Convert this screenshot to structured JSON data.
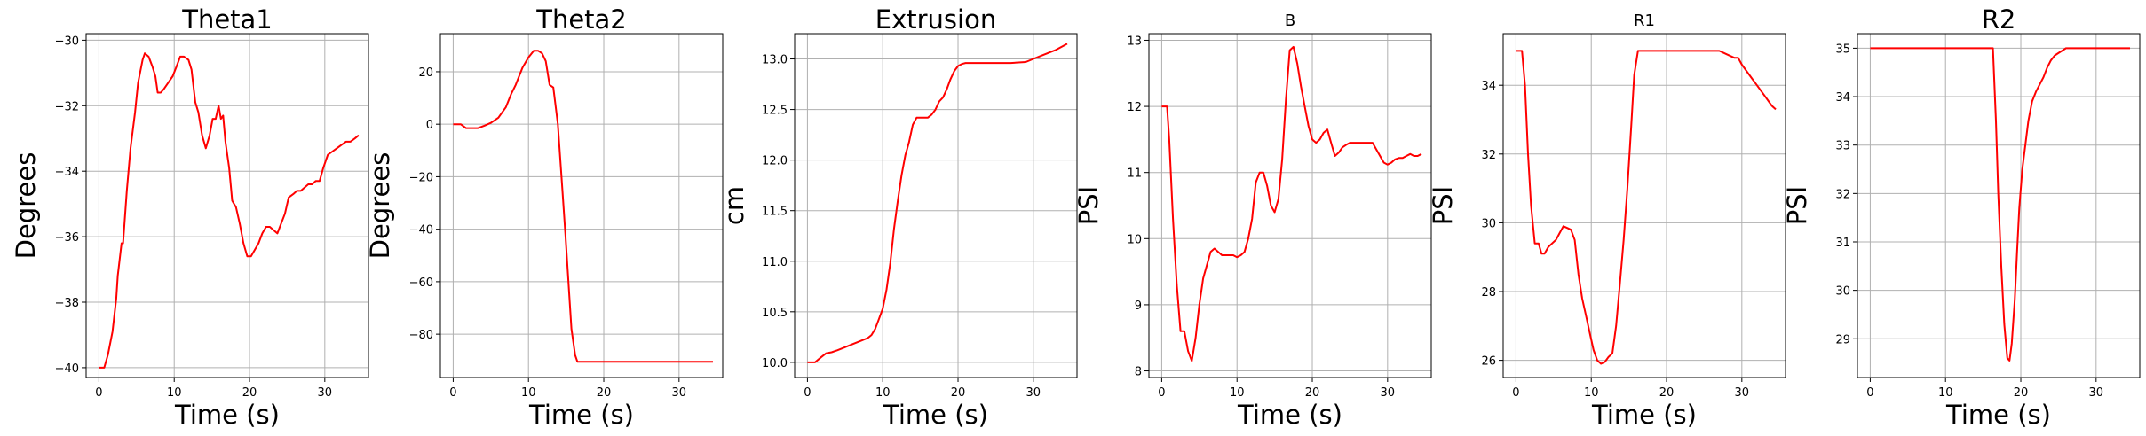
{
  "figure": {
    "line_color": "#ff0000",
    "grid_color": "#b0b0b0"
  },
  "chart_data": [
    {
      "type": "line",
      "title": "Theta1",
      "xlabel": "Time (s)",
      "ylabel": "Degrees",
      "xlim": [
        -1.7,
        35.8
      ],
      "ylim": [
        -40.3,
        -29.8
      ],
      "xticks": [
        0,
        10,
        20,
        30
      ],
      "yticks": [
        -40,
        -38,
        -36,
        -34,
        -32,
        -30
      ],
      "grid": true,
      "series": [
        {
          "x": [
            0,
            0.7,
            1.2,
            1.8,
            2.3,
            2.5,
            3.0,
            3.2,
            3.7,
            4.2,
            4.8,
            5.2,
            5.8,
            6.1,
            6.6,
            7.1,
            7.5,
            7.8,
            8.2,
            8.6,
            9.2,
            9.8,
            10.3,
            10.8,
            11.3,
            11.9,
            12.3,
            12.8,
            13.2,
            13.7,
            14.2,
            14.7,
            15.1,
            15.5,
            15.9,
            16.2,
            16.5,
            16.8,
            17.3,
            17.7,
            18.2,
            18.7,
            19.2,
            19.7,
            20.2,
            20.7,
            21.2,
            21.7,
            22.2,
            22.7,
            23.2,
            23.7,
            24.2,
            24.7,
            25.2,
            25.8,
            26.3,
            26.8,
            27.3,
            27.8,
            28.3,
            28.8,
            29.3,
            29.8,
            30.4,
            31.0,
            31.6,
            32.2,
            32.8,
            33.4,
            34.0,
            34.5
          ],
          "y": [
            -40.0,
            -40.0,
            -39.6,
            -38.9,
            -37.9,
            -37.2,
            -36.2,
            -36.2,
            -34.6,
            -33.3,
            -32.2,
            -31.3,
            -30.6,
            -30.4,
            -30.5,
            -30.8,
            -31.1,
            -31.6,
            -31.6,
            -31.5,
            -31.3,
            -31.1,
            -30.8,
            -30.5,
            -30.5,
            -30.6,
            -30.9,
            -31.9,
            -32.2,
            -32.9,
            -33.3,
            -32.9,
            -32.4,
            -32.4,
            -32.0,
            -32.4,
            -32.3,
            -33.1,
            -33.9,
            -34.9,
            -35.1,
            -35.6,
            -36.2,
            -36.6,
            -36.6,
            -36.4,
            -36.2,
            -35.9,
            -35.7,
            -35.7,
            -35.8,
            -35.9,
            -35.6,
            -35.3,
            -34.8,
            -34.7,
            -34.6,
            -34.6,
            -34.5,
            -34.4,
            -34.4,
            -34.3,
            -34.3,
            -33.9,
            -33.5,
            -33.4,
            -33.3,
            -33.2,
            -33.1,
            -33.1,
            -33.0,
            -32.9
          ]
        }
      ]
    },
    {
      "type": "line",
      "title": "Theta2",
      "xlabel": "Time (s)",
      "ylabel": "Degrees",
      "xlim": [
        -1.7,
        35.8
      ],
      "ylim": [
        -96.5,
        34.5
      ],
      "xticks": [
        0,
        10,
        20,
        30
      ],
      "yticks": [
        -80,
        -60,
        -40,
        -20,
        0,
        20
      ],
      "grid": true,
      "series": [
        {
          "x": [
            0,
            1.0,
            1.7,
            2.5,
            3.3,
            4.2,
            5.0,
            6.0,
            7.0,
            7.7,
            8.3,
            9.2,
            10.0,
            10.7,
            11.3,
            11.8,
            12.3,
            12.8,
            13.3,
            13.9,
            14.5,
            14.9,
            15.3,
            15.7,
            16.2,
            16.5,
            17.0,
            20.0,
            24.0,
            28.0,
            32.0,
            34.5
          ],
          "y": [
            0,
            0,
            -1.5,
            -1.5,
            -1.5,
            -0.5,
            0.5,
            2.5,
            6.5,
            11.5,
            15.0,
            21.5,
            25.5,
            28.0,
            28.0,
            27.0,
            24.0,
            15.0,
            14.0,
            0,
            -25.0,
            -42.0,
            -60.0,
            -78.0,
            -88.0,
            -90.5,
            -90.5,
            -90.5,
            -90.5,
            -90.5,
            -90.5,
            -90.5
          ]
        }
      ]
    },
    {
      "type": "line",
      "title": "Extrusion",
      "xlabel": "Time (s)",
      "ylabel": "cm",
      "xlim": [
        -1.7,
        35.8
      ],
      "ylim": [
        9.85,
        13.25
      ],
      "xticks": [
        0,
        10,
        20,
        30
      ],
      "yticks": [
        10.0,
        10.5,
        11.0,
        11.5,
        12.0,
        12.5,
        13.0
      ],
      "grid": true,
      "series": [
        {
          "x": [
            0,
            1.0,
            1.8,
            2.5,
            3.2,
            4.0,
            5.0,
            6.0,
            7.0,
            8.0,
            8.5,
            9.0,
            9.5,
            10.0,
            10.5,
            11.0,
            11.5,
            12.0,
            12.5,
            13.0,
            13.2,
            13.5,
            14.0,
            14.5,
            15.0,
            15.5,
            16.0,
            16.5,
            17.0,
            17.5,
            18.0,
            18.5,
            19.0,
            19.5,
            20.0,
            20.5,
            21.0,
            21.5,
            22.0,
            22.5,
            23.0,
            25.0,
            27.0,
            29.0,
            30.0,
            31.0,
            32.0,
            33.0,
            34.0,
            34.5
          ],
          "y": [
            10.0,
            10.0,
            10.05,
            10.09,
            10.1,
            10.12,
            10.15,
            10.18,
            10.21,
            10.24,
            10.27,
            10.33,
            10.43,
            10.53,
            10.72,
            10.98,
            11.32,
            11.6,
            11.85,
            12.05,
            12.1,
            12.18,
            12.35,
            12.42,
            12.42,
            12.42,
            12.42,
            12.45,
            12.5,
            12.58,
            12.62,
            12.7,
            12.8,
            12.88,
            12.93,
            12.95,
            12.96,
            12.96,
            12.96,
            12.96,
            12.96,
            12.96,
            12.96,
            12.97,
            13.0,
            13.03,
            13.06,
            13.09,
            13.13,
            13.15
          ]
        }
      ]
    },
    {
      "type": "line",
      "title": "B",
      "xlabel": "Time (s)",
      "ylabel": "PSI",
      "xlim": [
        -1.7,
        35.8
      ],
      "ylim": [
        7.9,
        13.1
      ],
      "xticks": [
        0,
        10,
        20,
        30
      ],
      "yticks": [
        8,
        9,
        10,
        11,
        12,
        13
      ],
      "grid": true,
      "series": [
        {
          "x": [
            0,
            0.7,
            1.0,
            1.5,
            2.0,
            2.5,
            3.0,
            3.5,
            4.0,
            4.5,
            5.0,
            5.5,
            6.0,
            6.5,
            7.0,
            7.5,
            8.0,
            8.5,
            9.0,
            9.5,
            10.0,
            10.5,
            11.0,
            11.5,
            12.0,
            12.5,
            13.0,
            13.5,
            14.0,
            14.5,
            15.0,
            15.5,
            16.0,
            16.5,
            17.0,
            17.5,
            18.0,
            18.5,
            19.0,
            19.5,
            20.0,
            20.5,
            21.0,
            21.5,
            22.0,
            22.5,
            23.0,
            23.5,
            24.0,
            24.5,
            25.0,
            25.5,
            26.0,
            27.0,
            28.0,
            29.0,
            29.5,
            30.0,
            30.5,
            31.0,
            31.5,
            32.0,
            32.5,
            33.0,
            33.5,
            34.0,
            34.5
          ],
          "y": [
            12.0,
            12.0,
            11.5,
            10.3,
            9.3,
            8.6,
            8.6,
            8.3,
            8.15,
            8.5,
            9.0,
            9.4,
            9.6,
            9.8,
            9.85,
            9.8,
            9.75,
            9.75,
            9.75,
            9.75,
            9.72,
            9.75,
            9.8,
            10.0,
            10.3,
            10.85,
            11.0,
            11.0,
            10.8,
            10.5,
            10.4,
            10.6,
            11.2,
            12.1,
            12.85,
            12.9,
            12.65,
            12.3,
            12.0,
            11.7,
            11.5,
            11.45,
            11.5,
            11.6,
            11.65,
            11.45,
            11.25,
            11.3,
            11.38,
            11.42,
            11.45,
            11.45,
            11.45,
            11.45,
            11.45,
            11.25,
            11.15,
            11.12,
            11.15,
            11.2,
            11.22,
            11.22,
            11.25,
            11.28,
            11.25,
            11.25,
            11.28
          ]
        }
      ]
    },
    {
      "type": "line",
      "title": "R1",
      "xlabel": "Time (s)",
      "ylabel": "PSI",
      "xlim": [
        -1.7,
        35.8
      ],
      "ylim": [
        25.5,
        35.5
      ],
      "xticks": [
        0,
        10,
        20,
        30
      ],
      "yticks": [
        26,
        28,
        30,
        32,
        34
      ],
      "grid": true,
      "series": [
        {
          "x": [
            0,
            0.8,
            1.2,
            1.6,
            2.0,
            2.5,
            3.0,
            3.4,
            3.8,
            4.3,
            4.8,
            5.3,
            5.8,
            6.3,
            6.8,
            7.3,
            7.8,
            8.3,
            8.8,
            9.3,
            9.8,
            10.3,
            10.8,
            11.3,
            11.8,
            12.3,
            12.8,
            13.3,
            13.8,
            14.3,
            14.8,
            15.3,
            15.7,
            16.2,
            17.0,
            20.0,
            24.0,
            27.0,
            28.0,
            29.0,
            29.5,
            30.0,
            31.0,
            32.0,
            33.0,
            34.0,
            34.5
          ],
          "y": [
            35.0,
            35.0,
            34.0,
            32.0,
            30.5,
            29.4,
            29.4,
            29.1,
            29.1,
            29.3,
            29.4,
            29.5,
            29.7,
            29.9,
            29.85,
            29.8,
            29.5,
            28.5,
            27.8,
            27.3,
            26.8,
            26.3,
            26.0,
            25.9,
            25.95,
            26.1,
            26.2,
            27.0,
            28.2,
            29.5,
            31.0,
            32.8,
            34.3,
            35.0,
            35.0,
            35.0,
            35.0,
            35.0,
            34.9,
            34.8,
            34.8,
            34.6,
            34.3,
            34.0,
            33.7,
            33.4,
            33.3
          ]
        }
      ]
    },
    {
      "type": "line",
      "title": "R2",
      "xlabel": "Time (s)",
      "ylabel": "PSI",
      "xlim": [
        -1.7,
        35.8
      ],
      "ylim": [
        28.2,
        35.3
      ],
      "xticks": [
        0,
        10,
        20,
        30
      ],
      "yticks": [
        29,
        30,
        31,
        32,
        33,
        34,
        35
      ],
      "grid": true,
      "series": [
        {
          "x": [
            0,
            5.0,
            10.0,
            15.0,
            16.3,
            16.7,
            17.0,
            17.4,
            17.8,
            18.2,
            18.5,
            18.8,
            19.2,
            19.5,
            19.8,
            20.2,
            20.6,
            21.0,
            21.5,
            22.0,
            22.5,
            23.0,
            23.5,
            24.0,
            24.5,
            25.0,
            25.5,
            26.0,
            26.5,
            27.0,
            27.5,
            28.0,
            29.0,
            30.0,
            32.0,
            34.0,
            34.5
          ],
          "y": [
            35.0,
            35.0,
            35.0,
            35.0,
            35.0,
            33.5,
            32.0,
            30.5,
            29.3,
            28.6,
            28.55,
            28.9,
            29.8,
            30.8,
            31.7,
            32.5,
            33.0,
            33.5,
            33.9,
            34.1,
            34.25,
            34.4,
            34.6,
            34.75,
            34.85,
            34.9,
            34.95,
            35.0,
            35.0,
            35.0,
            35.0,
            35.0,
            35.0,
            35.0,
            35.0,
            35.0,
            35.0
          ]
        }
      ]
    }
  ]
}
